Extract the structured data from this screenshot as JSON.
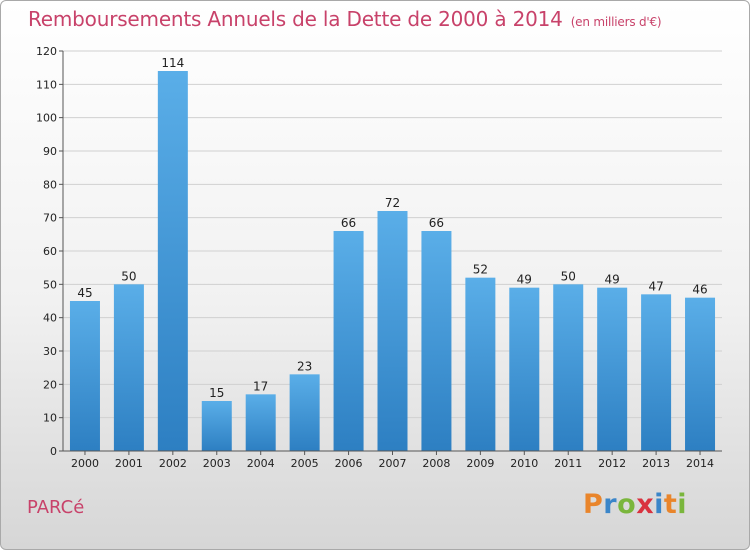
{
  "header": {
    "title": "Remboursements Annuels de la Dette de 2000 à 2014",
    "subtitle": "(en milliers d'€)"
  },
  "place_name": "PARCé",
  "logo": {
    "text": "Proxiti",
    "letters": [
      {
        "char": "P",
        "color": "#e9852b"
      },
      {
        "char": "r",
        "color": "#3b86c9"
      },
      {
        "char": "o",
        "color": "#7ab63c"
      },
      {
        "char": "x",
        "color": "#d9323f"
      },
      {
        "char": "i",
        "color": "#3b86c9"
      },
      {
        "char": "t",
        "color": "#e9852b"
      },
      {
        "char": "i",
        "color": "#7ab63c"
      }
    ]
  },
  "colors": {
    "title": "#c8426a",
    "bar_top": "#5aaee8",
    "bar_bottom": "#2d7fc2"
  },
  "chart_data": {
    "type": "bar",
    "title": "Remboursements Annuels de la Dette de 2000 à 2014",
    "subtitle": "(en milliers d'€)",
    "categories": [
      "2000",
      "2001",
      "2002",
      "2003",
      "2004",
      "2005",
      "2006",
      "2007",
      "2008",
      "2009",
      "2010",
      "2011",
      "2012",
      "2013",
      "2014"
    ],
    "values": [
      45,
      50,
      114,
      15,
      17,
      23,
      66,
      72,
      66,
      52,
      49,
      50,
      49,
      47,
      46
    ],
    "ylim": [
      0,
      120
    ],
    "yticks": [
      0,
      10,
      20,
      30,
      40,
      50,
      60,
      70,
      80,
      90,
      100,
      110,
      120
    ],
    "grid": true,
    "xlabel": "",
    "ylabel": ""
  }
}
